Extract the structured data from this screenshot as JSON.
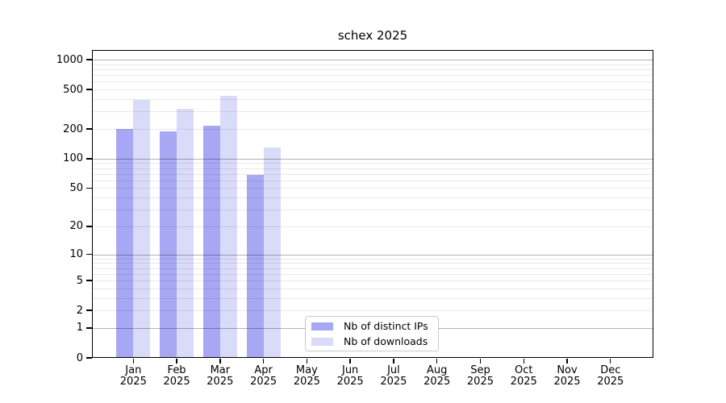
{
  "chart_data": {
    "type": "bar",
    "title": "schex 2025",
    "categories": [
      "Jan 2025",
      "Feb 2025",
      "Mar 2025",
      "Apr 2025",
      "May 2025",
      "Jun 2025",
      "Jul 2025",
      "Aug 2025",
      "Sep 2025",
      "Oct 2025",
      "Nov 2025",
      "Dec 2025"
    ],
    "series": [
      {
        "name": "Nb of distinct IPs",
        "color": "#a7a7f3",
        "values": [
          200,
          190,
          215,
          68,
          0,
          0,
          0,
          0,
          0,
          0,
          0,
          0
        ]
      },
      {
        "name": "Nb of downloads",
        "color": "#dadaf9",
        "values": [
          390,
          320,
          430,
          130,
          0,
          0,
          0,
          0,
          0,
          0,
          0,
          0
        ]
      }
    ],
    "y_axis": {
      "scale": "log1p",
      "ticks": [
        0,
        1,
        2,
        5,
        10,
        20,
        50,
        100,
        200,
        500,
        1000
      ],
      "major_gridlines": [
        1,
        10,
        100,
        1000
      ],
      "minor_gridlines": [
        2,
        3,
        4,
        5,
        6,
        7,
        8,
        9,
        20,
        30,
        40,
        50,
        60,
        70,
        80,
        90,
        200,
        300,
        400,
        500,
        600,
        700,
        800,
        900
      ],
      "range_max": 1250
    },
    "xlabel": "",
    "ylabel": "",
    "grid": "on",
    "legend_position": "lower center"
  },
  "colors": {
    "major_grid": "rgba(0,0,0,0.30)",
    "minor_grid": "rgba(0,0,0,0.085)",
    "axis": "#000000",
    "background": "#ffffff",
    "text": "#000000"
  }
}
